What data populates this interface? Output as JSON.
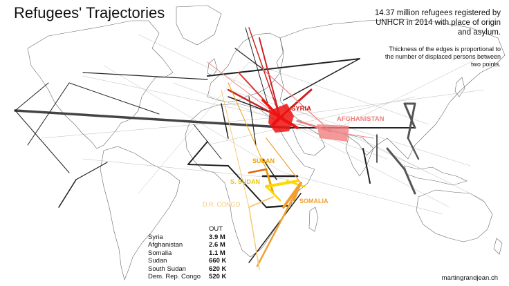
{
  "title": "Refugees' Trajectories",
  "subtitle": "14.37 million refugees registered by UNHCR in 2014 with place of origin and asylum.",
  "note": "Thickness of the edges is proportional to the number of displaced persons between two points.",
  "credit": "martingrandjean.ch",
  "colors": {
    "syria": "#ee1111",
    "afghanistan": "#f08080",
    "sudan": "#f0a000",
    "south_sudan": "#ffd800",
    "somalia": "#f0a030",
    "drc": "#f7c873",
    "edge": "#222222"
  },
  "map_labels": {
    "syria": "SYRIA",
    "afghanistan": "AFGHANISTAN",
    "sudan": "SUDAN",
    "south_sudan": "S. SUDAN",
    "somalia": "SOMALIA",
    "drc": "D.R. CONGO"
  },
  "table": {
    "header": "OUT",
    "rows": [
      {
        "country": "Syria",
        "value": "3.9 M"
      },
      {
        "country": "Afghanistan",
        "value": "2.6 M"
      },
      {
        "country": "Somalia",
        "value": "1.1 M"
      },
      {
        "country": "Sudan",
        "value": "660 K"
      },
      {
        "country": "South Sudan",
        "value": "620 K"
      },
      {
        "country": "Dem. Rep. Congo",
        "value": "520 K"
      }
    ]
  }
}
